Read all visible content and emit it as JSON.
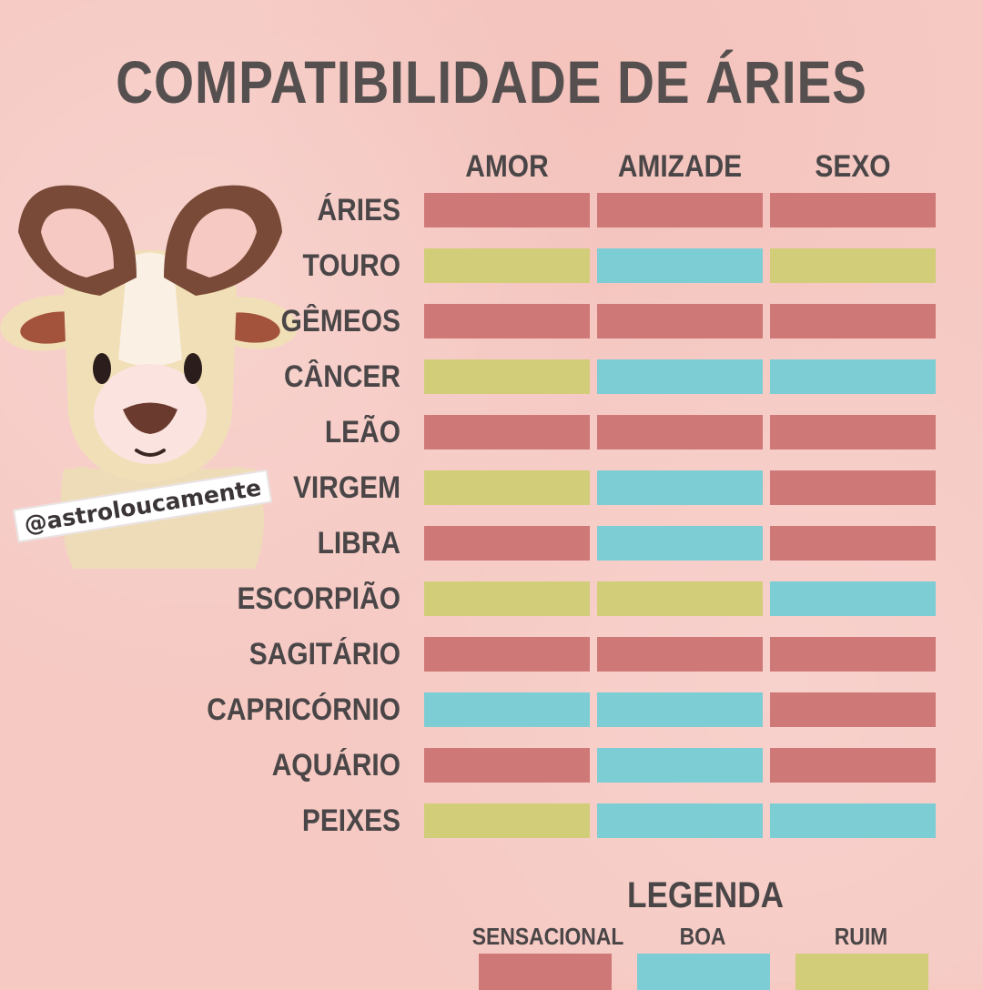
{
  "title": "COMPATIBILIDADE DE ÁRIES",
  "handle": "@astroloucamente",
  "columns": [
    "AMOR",
    "AMIZADE",
    "SEXO"
  ],
  "colors": {
    "sensacional": "#cf7878",
    "boa": "#7dcdd4",
    "ruim": "#d2cd79",
    "background": "#f6c9c3",
    "text": "#4a4647"
  },
  "rows": [
    {
      "sign": "ÁRIES",
      "values": [
        "sensacional",
        "sensacional",
        "sensacional"
      ]
    },
    {
      "sign": "TOURO",
      "values": [
        "ruim",
        "boa",
        "ruim"
      ]
    },
    {
      "sign": "GÊMEOS",
      "values": [
        "sensacional",
        "sensacional",
        "sensacional"
      ]
    },
    {
      "sign": "CÂNCER",
      "values": [
        "ruim",
        "boa",
        "boa"
      ]
    },
    {
      "sign": "LEÃO",
      "values": [
        "sensacional",
        "sensacional",
        "sensacional"
      ]
    },
    {
      "sign": "VIRGEM",
      "values": [
        "ruim",
        "boa",
        "sensacional"
      ]
    },
    {
      "sign": "LIBRA",
      "values": [
        "sensacional",
        "boa",
        "sensacional"
      ]
    },
    {
      "sign": "ESCORPIÃO",
      "values": [
        "ruim",
        "ruim",
        "boa"
      ]
    },
    {
      "sign": "SAGITÁRIO",
      "values": [
        "sensacional",
        "sensacional",
        "sensacional"
      ]
    },
    {
      "sign": "CAPRICÓRNIO",
      "values": [
        "boa",
        "boa",
        "sensacional"
      ]
    },
    {
      "sign": "AQUÁRIO",
      "values": [
        "sensacional",
        "boa",
        "sensacional"
      ]
    },
    {
      "sign": "PEIXES",
      "values": [
        "ruim",
        "boa",
        "boa"
      ]
    }
  ],
  "legend": {
    "title": "LEGENDA",
    "items": [
      {
        "label": "SENSACIONAL",
        "key": "sensacional"
      },
      {
        "label": "BOA",
        "key": "boa"
      },
      {
        "label": "RUIM",
        "key": "ruim"
      }
    ]
  },
  "illustration": {
    "icon": "ram-goat-icon"
  }
}
